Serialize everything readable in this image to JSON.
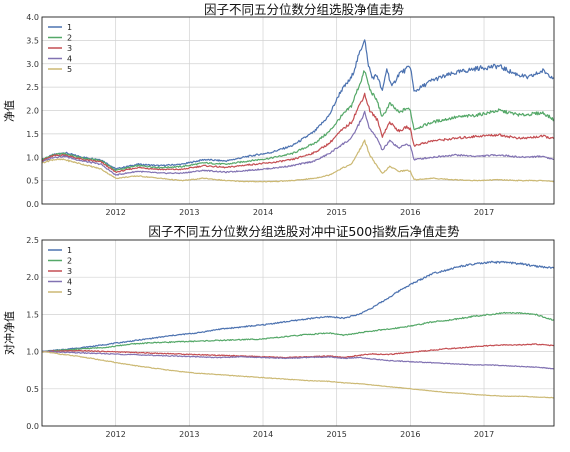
{
  "chart_data": [
    {
      "type": "line",
      "title": "因子不同五分位数分组选股净值走势",
      "xlabel": "",
      "ylabel": "净值",
      "xlim": [
        2011.0,
        2017.95
      ],
      "ylim": [
        0.0,
        4.0
      ],
      "yticks": [
        "0.0",
        "0.5",
        "1.0",
        "1.5",
        "2.0",
        "2.5",
        "3.0",
        "3.5",
        "4.0"
      ],
      "xticks": [
        "2012",
        "2013",
        "2014",
        "2015",
        "2016",
        "2017"
      ],
      "grid": true,
      "legend_position": "top-left",
      "series": [
        {
          "name": "1",
          "color": "#4c72b0",
          "x": [
            2011.0,
            2011.15,
            2011.3,
            2011.55,
            2011.8,
            2012.0,
            2012.3,
            2012.6,
            2012.9,
            2013.2,
            2013.5,
            2013.8,
            2014.1,
            2014.4,
            2014.7,
            2014.9,
            2015.05,
            2015.2,
            2015.38,
            2015.42,
            2015.48,
            2015.55,
            2015.62,
            2015.68,
            2015.75,
            2015.85,
            2015.92,
            2016.0,
            2016.05,
            2016.3,
            2016.6,
            2016.9,
            2017.2,
            2017.4,
            2017.6,
            2017.8,
            2017.95
          ],
          "values": [
            0.95,
            1.05,
            1.1,
            1.0,
            0.95,
            0.75,
            0.85,
            0.82,
            0.85,
            0.95,
            0.92,
            1.02,
            1.1,
            1.25,
            1.55,
            1.9,
            2.4,
            2.7,
            3.55,
            3.05,
            2.7,
            2.75,
            2.4,
            2.9,
            2.5,
            2.8,
            2.85,
            2.95,
            2.4,
            2.65,
            2.8,
            2.9,
            2.95,
            2.8,
            2.7,
            2.85,
            2.7
          ]
        },
        {
          "name": "2",
          "color": "#55a868",
          "x": [
            2011.0,
            2011.15,
            2011.3,
            2011.55,
            2011.8,
            2012.0,
            2012.3,
            2012.6,
            2012.9,
            2013.2,
            2013.5,
            2013.8,
            2014.1,
            2014.4,
            2014.7,
            2014.9,
            2015.05,
            2015.2,
            2015.38,
            2015.45,
            2015.55,
            2015.62,
            2015.72,
            2015.85,
            2015.95,
            2016.0,
            2016.05,
            2016.3,
            2016.6,
            2016.9,
            2017.2,
            2017.5,
            2017.8,
            2017.95
          ],
          "values": [
            0.95,
            1.05,
            1.08,
            0.98,
            0.93,
            0.72,
            0.82,
            0.78,
            0.8,
            0.88,
            0.85,
            0.92,
            0.98,
            1.08,
            1.3,
            1.55,
            1.85,
            2.1,
            2.85,
            2.45,
            2.2,
            1.85,
            2.15,
            1.95,
            2.05,
            2.0,
            1.6,
            1.75,
            1.85,
            1.9,
            2.0,
            1.9,
            1.95,
            1.8
          ]
        },
        {
          "name": "3",
          "color": "#c44e52",
          "x": [
            2011.0,
            2011.15,
            2011.3,
            2011.55,
            2011.8,
            2012.0,
            2012.3,
            2012.6,
            2012.9,
            2013.2,
            2013.5,
            2013.8,
            2014.1,
            2014.4,
            2014.7,
            2014.9,
            2015.05,
            2015.2,
            2015.38,
            2015.45,
            2015.55,
            2015.62,
            2015.72,
            2015.85,
            2015.95,
            2016.0,
            2016.05,
            2016.3,
            2016.6,
            2016.9,
            2017.2,
            2017.5,
            2017.8,
            2017.95
          ],
          "values": [
            0.93,
            1.03,
            1.05,
            0.95,
            0.9,
            0.68,
            0.78,
            0.74,
            0.74,
            0.82,
            0.78,
            0.84,
            0.88,
            0.95,
            1.1,
            1.3,
            1.55,
            1.75,
            2.35,
            2.0,
            1.8,
            1.45,
            1.75,
            1.55,
            1.65,
            1.6,
            1.25,
            1.35,
            1.4,
            1.45,
            1.48,
            1.4,
            1.45,
            1.4
          ]
        },
        {
          "name": "4",
          "color": "#8172b2",
          "x": [
            2011.0,
            2011.15,
            2011.3,
            2011.55,
            2011.8,
            2012.0,
            2012.3,
            2012.6,
            2012.9,
            2013.2,
            2013.5,
            2013.8,
            2014.1,
            2014.4,
            2014.7,
            2014.9,
            2015.05,
            2015.2,
            2015.38,
            2015.45,
            2015.55,
            2015.62,
            2015.72,
            2015.85,
            2015.95,
            2016.0,
            2016.05,
            2016.3,
            2016.6,
            2016.9,
            2017.2,
            2017.5,
            2017.8,
            2017.95
          ],
          "values": [
            0.9,
            1.0,
            1.02,
            0.92,
            0.85,
            0.62,
            0.7,
            0.66,
            0.66,
            0.72,
            0.68,
            0.72,
            0.76,
            0.82,
            0.92,
            1.08,
            1.25,
            1.4,
            1.95,
            1.6,
            1.4,
            1.15,
            1.35,
            1.2,
            1.28,
            1.25,
            0.95,
            1.0,
            1.05,
            1.02,
            1.05,
            1.0,
            1.02,
            0.95
          ]
        },
        {
          "name": "5",
          "color": "#ccb974",
          "x": [
            2011.0,
            2011.15,
            2011.3,
            2011.55,
            2011.8,
            2012.0,
            2012.3,
            2012.6,
            2012.9,
            2013.2,
            2013.5,
            2013.8,
            2014.1,
            2014.4,
            2014.7,
            2014.9,
            2015.05,
            2015.2,
            2015.38,
            2015.45,
            2015.55,
            2015.62,
            2015.72,
            2015.85,
            2015.95,
            2016.0,
            2016.05,
            2016.3,
            2016.6,
            2016.9,
            2017.2,
            2017.5,
            2017.8,
            2017.95
          ],
          "values": [
            0.88,
            0.95,
            0.95,
            0.85,
            0.75,
            0.55,
            0.6,
            0.55,
            0.5,
            0.55,
            0.5,
            0.48,
            0.48,
            0.5,
            0.55,
            0.62,
            0.75,
            0.85,
            1.35,
            1.05,
            0.8,
            0.65,
            0.8,
            0.7,
            0.72,
            0.7,
            0.52,
            0.55,
            0.52,
            0.5,
            0.52,
            0.5,
            0.5,
            0.48
          ]
        }
      ]
    },
    {
      "type": "line",
      "title": "因子不同五分位数分组选股对冲中证500指数后净值走势",
      "xlabel": "",
      "ylabel": "对冲净值",
      "xlim": [
        2011.0,
        2017.95
      ],
      "ylim": [
        0.0,
        2.5
      ],
      "yticks": [
        "0.0",
        "0.5",
        "1.0",
        "1.5",
        "2.0",
        "2.5"
      ],
      "xticks": [
        "2012",
        "2013",
        "2014",
        "2015",
        "2016",
        "2017"
      ],
      "grid": true,
      "legend_position": "top-left",
      "series": [
        {
          "name": "1",
          "color": "#4c72b0",
          "x": [
            2011.0,
            2011.3,
            2011.6,
            2011.9,
            2012.2,
            2012.5,
            2012.8,
            2013.1,
            2013.4,
            2013.7,
            2014.0,
            2014.3,
            2014.6,
            2014.9,
            2015.1,
            2015.3,
            2015.5,
            2015.7,
            2015.9,
            2016.1,
            2016.3,
            2016.5,
            2016.7,
            2016.9,
            2017.1,
            2017.3,
            2017.5,
            2017.7,
            2017.95
          ],
          "values": [
            1.0,
            1.03,
            1.06,
            1.1,
            1.14,
            1.18,
            1.22,
            1.25,
            1.3,
            1.33,
            1.36,
            1.4,
            1.44,
            1.47,
            1.45,
            1.5,
            1.6,
            1.72,
            1.85,
            1.95,
            2.05,
            2.1,
            2.15,
            2.18,
            2.2,
            2.2,
            2.18,
            2.15,
            2.12
          ]
        },
        {
          "name": "2",
          "color": "#55a868",
          "x": [
            2011.0,
            2011.3,
            2011.6,
            2011.9,
            2012.2,
            2012.5,
            2012.8,
            2013.1,
            2013.4,
            2013.7,
            2014.0,
            2014.3,
            2014.6,
            2014.9,
            2015.1,
            2015.3,
            2015.5,
            2015.7,
            2015.9,
            2016.1,
            2016.3,
            2016.5,
            2016.7,
            2016.9,
            2017.1,
            2017.3,
            2017.5,
            2017.7,
            2017.95
          ],
          "values": [
            1.0,
            1.02,
            1.04,
            1.06,
            1.1,
            1.12,
            1.13,
            1.14,
            1.15,
            1.16,
            1.17,
            1.2,
            1.23,
            1.25,
            1.22,
            1.25,
            1.28,
            1.3,
            1.33,
            1.36,
            1.4,
            1.42,
            1.45,
            1.48,
            1.5,
            1.52,
            1.52,
            1.5,
            1.42
          ]
        },
        {
          "name": "3",
          "color": "#c44e52",
          "x": [
            2011.0,
            2011.3,
            2011.6,
            2011.9,
            2012.2,
            2012.5,
            2012.8,
            2013.1,
            2013.4,
            2013.7,
            2014.0,
            2014.3,
            2014.6,
            2014.9,
            2015.1,
            2015.3,
            2015.5,
            2015.7,
            2015.9,
            2016.1,
            2016.3,
            2016.5,
            2016.7,
            2016.9,
            2017.1,
            2017.3,
            2017.5,
            2017.7,
            2017.95
          ],
          "values": [
            1.0,
            1.01,
            1.01,
            1.0,
            0.99,
            0.98,
            0.97,
            0.96,
            0.95,
            0.94,
            0.93,
            0.92,
            0.93,
            0.94,
            0.92,
            0.95,
            0.97,
            0.96,
            0.98,
            1.0,
            1.02,
            1.04,
            1.05,
            1.07,
            1.08,
            1.09,
            1.09,
            1.1,
            1.08
          ]
        },
        {
          "name": "4",
          "color": "#8172b2",
          "x": [
            2011.0,
            2011.3,
            2011.6,
            2011.9,
            2012.2,
            2012.5,
            2012.8,
            2013.1,
            2013.4,
            2013.7,
            2014.0,
            2014.3,
            2014.6,
            2014.9,
            2015.1,
            2015.3,
            2015.5,
            2015.7,
            2015.9,
            2016.1,
            2016.3,
            2016.5,
            2016.7,
            2016.9,
            2017.1,
            2017.3,
            2017.5,
            2017.7,
            2017.95
          ],
          "values": [
            1.0,
            0.99,
            0.98,
            0.97,
            0.96,
            0.95,
            0.94,
            0.93,
            0.92,
            0.93,
            0.92,
            0.91,
            0.92,
            0.93,
            0.91,
            0.92,
            0.9,
            0.88,
            0.87,
            0.86,
            0.85,
            0.84,
            0.83,
            0.82,
            0.82,
            0.81,
            0.8,
            0.79,
            0.77
          ]
        },
        {
          "name": "5",
          "color": "#ccb974",
          "x": [
            2011.0,
            2011.3,
            2011.6,
            2011.9,
            2012.2,
            2012.5,
            2012.8,
            2013.1,
            2013.4,
            2013.7,
            2014.0,
            2014.3,
            2014.6,
            2014.9,
            2015.1,
            2015.3,
            2015.5,
            2015.7,
            2015.9,
            2016.1,
            2016.3,
            2016.5,
            2016.7,
            2016.9,
            2017.1,
            2017.3,
            2017.5,
            2017.7,
            2017.95
          ],
          "values": [
            1.0,
            0.96,
            0.92,
            0.87,
            0.82,
            0.78,
            0.74,
            0.71,
            0.69,
            0.67,
            0.65,
            0.63,
            0.61,
            0.6,
            0.58,
            0.57,
            0.55,
            0.53,
            0.51,
            0.49,
            0.47,
            0.45,
            0.44,
            0.42,
            0.41,
            0.4,
            0.4,
            0.39,
            0.38
          ]
        }
      ]
    }
  ]
}
